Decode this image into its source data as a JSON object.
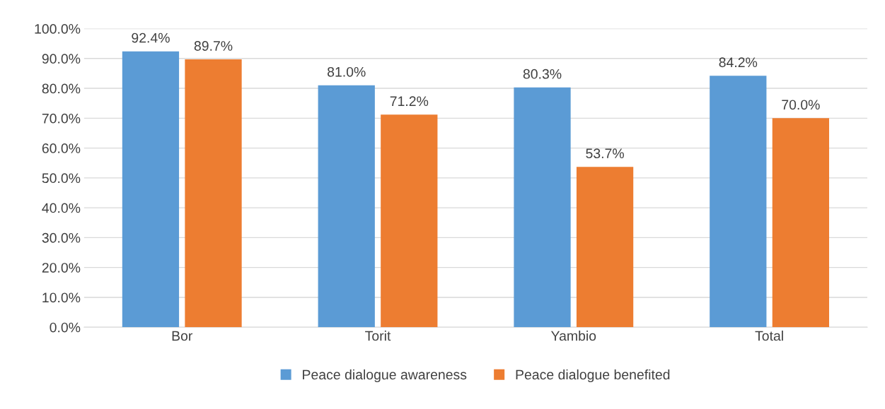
{
  "chart_data": {
    "type": "bar",
    "categories": [
      "Bor",
      "Torit",
      "Yambio",
      "Total"
    ],
    "series": [
      {
        "name": "Peace dialogue awareness",
        "color": "#5b9bd5",
        "values": [
          92.4,
          81.0,
          80.3,
          84.2
        ],
        "value_labels": [
          "92.4%",
          "81.0%",
          "80.3%",
          "84.2%"
        ]
      },
      {
        "name": "Peace dialogue benefited",
        "color": "#ed7d31",
        "values": [
          89.7,
          71.2,
          53.7,
          70.0
        ],
        "value_labels": [
          "89.7%",
          "71.2%",
          "53.7%",
          "70.0%"
        ]
      }
    ],
    "ylim": [
      0,
      100
    ],
    "yticks": [
      {
        "value": 0,
        "label": "0.0%"
      },
      {
        "value": 10,
        "label": "10.0%"
      },
      {
        "value": 20,
        "label": "20.0%"
      },
      {
        "value": 30,
        "label": "30.0%"
      },
      {
        "value": 40,
        "label": "40.0%"
      },
      {
        "value": 50,
        "label": "50.0%"
      },
      {
        "value": 60,
        "label": "60.0%"
      },
      {
        "value": 70,
        "label": "70.0%"
      },
      {
        "value": 80,
        "label": "80.0%"
      },
      {
        "value": 90,
        "label": "90.0%"
      },
      {
        "value": 100,
        "label": "100.0%"
      }
    ],
    "grid": "y",
    "legend": "bottom"
  }
}
